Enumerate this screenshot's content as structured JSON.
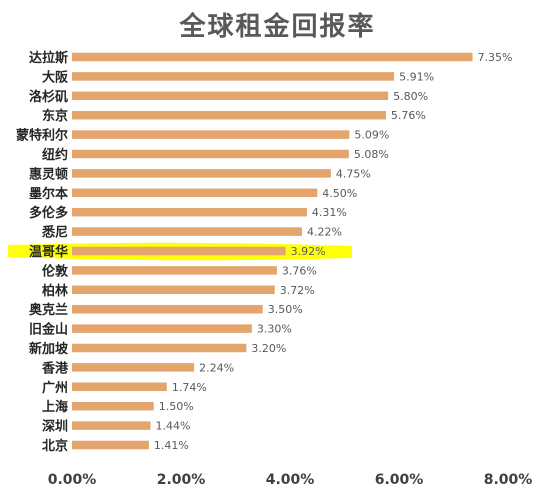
{
  "chart_data": {
    "type": "bar",
    "orientation": "horizontal",
    "title": "全球租金回报率",
    "categories": [
      "达拉斯",
      "大阪",
      "洛杉矶",
      "东京",
      "蒙特利尔",
      "纽约",
      "惠灵顿",
      "墨尔本",
      "多伦多",
      "悉尼",
      "温哥华",
      "伦敦",
      "柏林",
      "奥克兰",
      "旧金山",
      "新加坡",
      "香港",
      "广州",
      "上海",
      "深圳",
      "北京"
    ],
    "values": [
      7.35,
      5.91,
      5.8,
      5.76,
      5.09,
      5.08,
      4.75,
      4.5,
      4.31,
      4.22,
      3.92,
      3.76,
      3.72,
      3.5,
      3.3,
      3.2,
      2.24,
      1.74,
      1.5,
      1.44,
      1.41
    ],
    "value_labels": [
      "7.35%",
      "5.91%",
      "5.80%",
      "5.76%",
      "5.09%",
      "5.08%",
      "4.75%",
      "4.50%",
      "4.31%",
      "4.22%",
      "3.92%",
      "3.76%",
      "3.72%",
      "3.50%",
      "3.30%",
      "3.20%",
      "2.24%",
      "1.74%",
      "1.50%",
      "1.44%",
      "1.41%"
    ],
    "xticks": [
      "0.00%",
      "2.00%",
      "4.00%",
      "6.00%",
      "8.00%"
    ],
    "xtick_values": [
      0,
      2,
      4,
      6,
      8
    ],
    "xlim": [
      0,
      8
    ],
    "highlighted_category": "温哥华",
    "bar_color": "#e3a56b",
    "highlight_color": "#ffff00",
    "grid": false,
    "legend": "none"
  }
}
